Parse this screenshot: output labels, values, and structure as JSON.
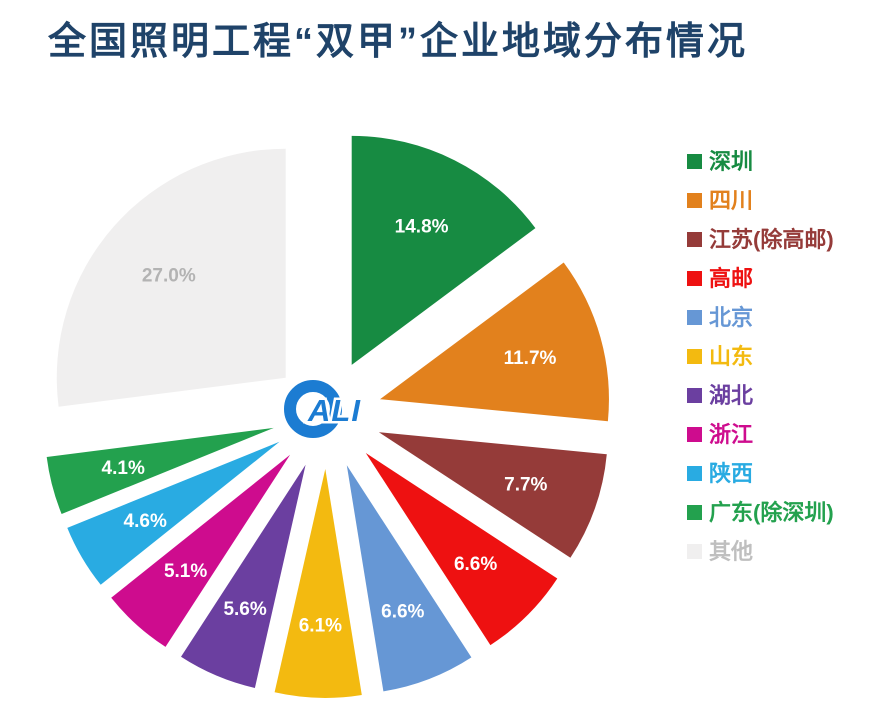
{
  "title": "全国照明工程“双甲”企业地域分布情况",
  "title_color": "#1F4369",
  "logo": {
    "text": "ALI",
    "color": "#1C7CD2"
  },
  "chart_data": {
    "type": "pie",
    "title": "全国照明工程“双甲”企业地域分布情况",
    "start_angle_deg": 0,
    "direction": "clockwise",
    "exploded": true,
    "legend_position": "right",
    "categories": [
      "深圳",
      "四川",
      "江苏(除高邮)",
      "高邮",
      "北京",
      "山东",
      "湖北",
      "浙江",
      "陕西",
      "广东(除深圳)",
      "其他"
    ],
    "values": [
      14.8,
      11.7,
      7.7,
      6.6,
      6.6,
      6.1,
      5.6,
      5.1,
      4.6,
      4.1,
      27.0
    ],
    "labels": [
      "14.8%",
      "11.7%",
      "7.7%",
      "6.6%",
      "6.6%",
      "6.1%",
      "5.6%",
      "5.1%",
      "4.6%",
      "4.1%",
      "27.0%"
    ],
    "colors": [
      "#178B42",
      "#E2811D",
      "#953B39",
      "#EE1111",
      "#6697D5",
      "#F3BA10",
      "#6B3FA0",
      "#CE0C8E",
      "#29ABE2",
      "#23A14E",
      "#F0EFEF"
    ],
    "label_colors": [
      "#FFFFFF",
      "#FFFFFF",
      "#FFFFFF",
      "#FFFFFF",
      "#FFFFFF",
      "#FFFFFF",
      "#FFFFFF",
      "#FFFFFF",
      "#FFFFFF",
      "#FFFFFF",
      "#B3B3B3"
    ],
    "legend_text_colors": [
      "#178B42",
      "#E2811D",
      "#953B39",
      "#EE1111",
      "#6697D5",
      "#F3BA10",
      "#6B3FA0",
      "#CE0C8E",
      "#29ABE2",
      "#23A14E",
      "#BFBFBF"
    ]
  }
}
